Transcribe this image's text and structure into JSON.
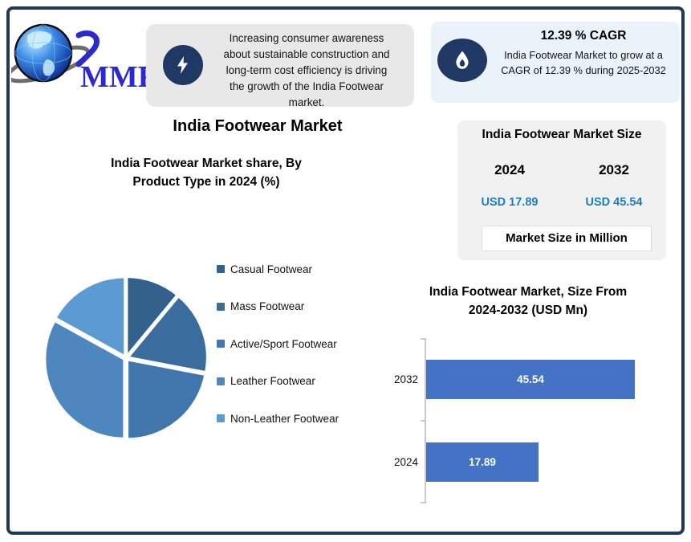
{
  "logo": {
    "text": "MMR"
  },
  "insight_card": {
    "text": "Increasing consumer awareness\nabout sustainable construction and\nlong-term cost efficiency is driving\nthe growth of the India Footwear\nmarket."
  },
  "cagr_card": {
    "title": "12.39 % CAGR",
    "body": "India Footwear Market to grow at a\nCAGR of 12.39 % during 2025-2032"
  },
  "main_title": "India Footwear Market",
  "market_size_card": {
    "title": "India Footwear Market Size",
    "columns": [
      {
        "year": "2024",
        "value": "USD 17.89"
      },
      {
        "year": "2032",
        "value": "USD 45.54"
      }
    ],
    "note": "Market Size in Million",
    "value_color": "#1B7EC4"
  },
  "chart_data": [
    {
      "type": "pie",
      "title": "India Footwear Market share, By\nProduct Type in 2024 (%)",
      "labels": [
        "Casual Footwear",
        "Mass Footwear",
        "Active/Sport Footwear",
        "Leather Footwear",
        "Non-Leather Footwear"
      ],
      "values": [
        11,
        17,
        22,
        33,
        17
      ],
      "units": "%",
      "colors": [
        "#33608D",
        "#3A6D9E",
        "#4076AB",
        "#4E86BF",
        "#5C9AD3"
      ],
      "start_angle_deg": 0,
      "direction": "clockwise",
      "legend_position": "right"
    },
    {
      "type": "bar",
      "orientation": "horizontal",
      "title": "India Footwear Market, Size From\n2024-2032 (USD Mn)",
      "categories": [
        "2032",
        "2024"
      ],
      "values": [
        45.54,
        17.89
      ],
      "data_labels": [
        "45.54",
        "17.89"
      ],
      "bar_color": "#4472C4",
      "label_color": "#FFFFFF",
      "xlim": [
        -14.2,
        45.54
      ],
      "grid": false
    }
  ],
  "colors": {
    "frame": "#20395B",
    "icon_navy": "#1F3864",
    "insight_bg": "#E8E8E8",
    "cagr_bg": "#EAF2FA",
    "market_card_bg": "#F1F1F1"
  }
}
